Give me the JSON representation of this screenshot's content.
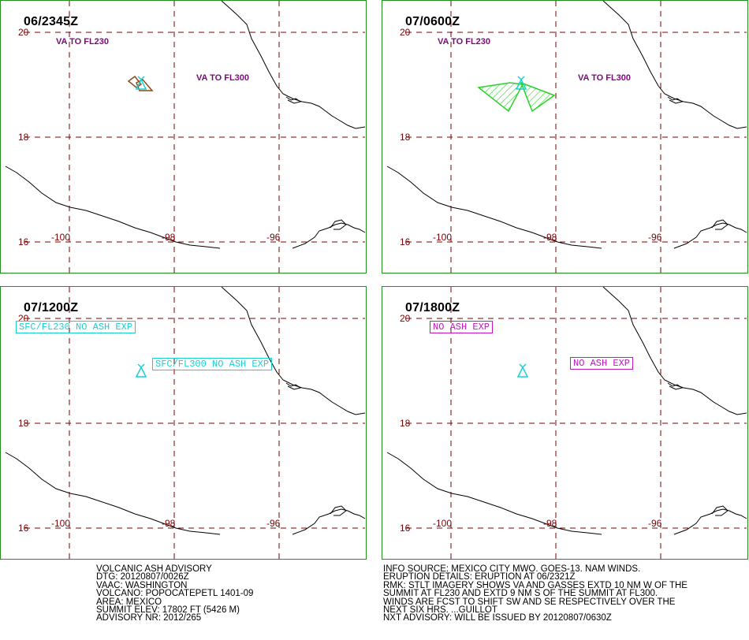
{
  "panels": [
    {
      "time": "06/2345Z",
      "labels": [
        "VA TO FL230",
        "VA TO FL300"
      ],
      "boxes": [],
      "ash": "small"
    },
    {
      "time": "07/0600Z",
      "labels": [
        "VA TO FL230",
        "VA TO FL300"
      ],
      "boxes": [],
      "ash": "large"
    },
    {
      "time": "07/1200Z",
      "labels": [],
      "boxes": [
        "SFC/FL230 NO ASH EXP",
        "SFC/FL300 NO ASH EXP"
      ],
      "ash": "none"
    },
    {
      "time": "07/1800Z",
      "labels": [],
      "boxes": [
        "NO ASH EXP",
        "NO ASH EXP"
      ],
      "ash": "none"
    }
  ],
  "grid": {
    "lat_labels": [
      "20",
      "18",
      "16"
    ],
    "lon_labels": [
      "-100",
      "-98",
      "-96"
    ]
  },
  "advisory": {
    "lines": [
      "VOLCANIC ASH ADVISORY",
      "DTG: 20120807/0026Z",
      "VAAC: WASHINGTON",
      "VOLCANO: POPOCATEPETL 1401-09",
      "AREA: MEXICO",
      "SUMMIT ELEV: 17802 FT (5426 M)",
      "ADVISORY NR: 2012/265"
    ]
  },
  "info": {
    "lines": [
      "INFO SOURCE: MEXICO CITY MWO. GOES-13. NAM WINDS.",
      "ERUPTION DETAILS: ERUPTION AT 06/2321Z",
      "RMK: STLT IMAGERY SHOWS VA AND GASSES EXTD 10 NM W OF THE",
      "SUMMIT AT FL230 AND EXTD 9 NM S OF THE SUMMIT AT FL300.",
      "WINDS ARE FCST TO SHIFT SW AND SE RESPECTIVELY OVER THE",
      "NEXT SIX HRS. ...GUILLOT",
      "NXT ADVISORY: WILL BE ISSUED BY 20120807/0630Z"
    ]
  },
  "colors": {
    "panel_border": "#1f8f1f",
    "grid": "#7a0000",
    "coast": "#000000",
    "volcano": "#19d0d6",
    "ash_fill": "#2bd12b",
    "ash_small": "#8a4a1a",
    "label": "#7a0a7a",
    "box_cyan": "#19d0d6",
    "box_magenta": "#c316c3"
  },
  "icons": [
    "volcano-icon"
  ]
}
